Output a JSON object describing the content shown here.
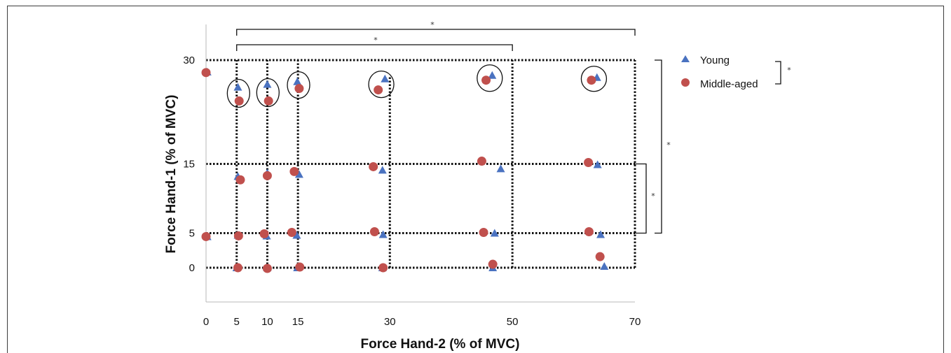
{
  "chart_data": {
    "type": "scatter",
    "xlabel": "Force Hand-2  (% of MVC)",
    "ylabel": "Force Hand-1 (% of MVC)",
    "xlim": [
      0,
      70
    ],
    "ylim": [
      -5,
      35
    ],
    "x_ticks": [
      0,
      5,
      10,
      15,
      30,
      50,
      70
    ],
    "y_ticks": [
      0,
      5,
      15,
      30
    ],
    "grid": "dotted lines at condition levels",
    "legend_position": "right",
    "series": [
      {
        "name": "Young",
        "marker": "triangle",
        "color": "#4a72c0",
        "points": [
          {
            "x": 0.2,
            "y": 28.3
          },
          {
            "x": 5.2,
            "y": 26.1
          },
          {
            "x": 10.0,
            "y": 26.5
          },
          {
            "x": 14.9,
            "y": 26.9
          },
          {
            "x": 29.2,
            "y": 27.3
          },
          {
            "x": 46.7,
            "y": 27.8
          },
          {
            "x": 63.8,
            "y": 27.5
          },
          {
            "x": 5.2,
            "y": 13.2
          },
          {
            "x": 10.0,
            "y": 13.7
          },
          {
            "x": 15.2,
            "y": 13.5
          },
          {
            "x": 28.8,
            "y": 14.1
          },
          {
            "x": 48.1,
            "y": 14.3
          },
          {
            "x": 63.9,
            "y": 14.9
          },
          {
            "x": 0.2,
            "y": 4.5
          },
          {
            "x": 5.2,
            "y": 4.7
          },
          {
            "x": 9.9,
            "y": 4.6
          },
          {
            "x": 14.8,
            "y": 4.7
          },
          {
            "x": 28.9,
            "y": 4.8
          },
          {
            "x": 47.1,
            "y": 5.0
          },
          {
            "x": 64.4,
            "y": 4.8
          },
          {
            "x": 5.0,
            "y": 0.0
          },
          {
            "x": 10.0,
            "y": 0.0
          },
          {
            "x": 14.9,
            "y": 0.0
          },
          {
            "x": 28.8,
            "y": 0.0
          },
          {
            "x": 46.8,
            "y": 0.0
          },
          {
            "x": 65.0,
            "y": 0.2
          }
        ]
      },
      {
        "name": "Middle-aged",
        "marker": "circle",
        "color": "#c0504d",
        "points": [
          {
            "x": 0.0,
            "y": 28.2
          },
          {
            "x": 5.4,
            "y": 24.1
          },
          {
            "x": 10.2,
            "y": 24.1
          },
          {
            "x": 15.2,
            "y": 25.9
          },
          {
            "x": 28.1,
            "y": 25.7
          },
          {
            "x": 45.7,
            "y": 27.1
          },
          {
            "x": 62.9,
            "y": 27.1
          },
          {
            "x": 5.6,
            "y": 12.7
          },
          {
            "x": 10.0,
            "y": 13.3
          },
          {
            "x": 14.4,
            "y": 13.9
          },
          {
            "x": 27.3,
            "y": 14.6
          },
          {
            "x": 45.0,
            "y": 15.4
          },
          {
            "x": 62.4,
            "y": 15.2
          },
          {
            "x": 0.0,
            "y": 4.5
          },
          {
            "x": 5.3,
            "y": 4.6
          },
          {
            "x": 9.5,
            "y": 4.9
          },
          {
            "x": 14.0,
            "y": 5.1
          },
          {
            "x": 27.5,
            "y": 5.2
          },
          {
            "x": 45.3,
            "y": 5.1
          },
          {
            "x": 62.5,
            "y": 5.2
          },
          {
            "x": 5.2,
            "y": 0.0
          },
          {
            "x": 10.0,
            "y": -0.1
          },
          {
            "x": 15.3,
            "y": 0.1
          },
          {
            "x": 28.9,
            "y": 0.0
          },
          {
            "x": 46.8,
            "y": 0.5
          },
          {
            "x": 64.3,
            "y": 1.6
          }
        ]
      }
    ],
    "significance_marker": "*"
  }
}
